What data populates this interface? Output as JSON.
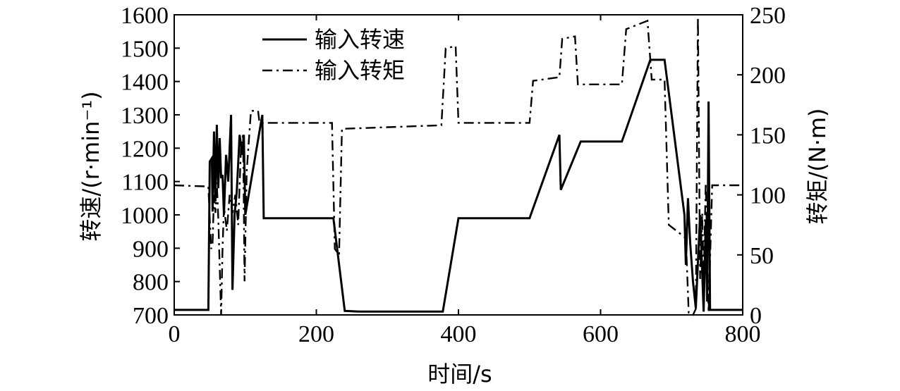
{
  "chart_data": {
    "type": "line",
    "xlabel": "时间/s",
    "ylabel_left": "转速/(r·min⁻¹)",
    "ylabel_right": "转矩/(N·m)",
    "xlim": [
      0,
      800
    ],
    "ylim_left": [
      700,
      1600
    ],
    "ylim_right": [
      0,
      250
    ],
    "x_ticks": [
      0,
      200,
      400,
      600,
      800
    ],
    "y_left_ticks": [
      700,
      800,
      900,
      1000,
      1100,
      1200,
      1300,
      1400,
      1500,
      1600
    ],
    "y_right_ticks": [
      0,
      50,
      100,
      150,
      200,
      250
    ],
    "grid": false,
    "legend_position": "top-center",
    "series": [
      {
        "name": "输入转速",
        "axis": "left",
        "style": "solid",
        "color": "#000000",
        "points": [
          [
            0,
            715
          ],
          [
            48,
            715
          ],
          [
            50,
            1160
          ],
          [
            53,
            1170
          ],
          [
            54,
            1010
          ],
          [
            56,
            1250
          ],
          [
            58,
            1040
          ],
          [
            60,
            1270
          ],
          [
            62,
            1080
          ],
          [
            64,
            1230
          ],
          [
            66,
            1110
          ],
          [
            68,
            1120
          ],
          [
            70,
            1000
          ],
          [
            73,
            1180
          ],
          [
            76,
            1100
          ],
          [
            80,
            1300
          ],
          [
            82,
            775
          ],
          [
            85,
            1000
          ],
          [
            88,
            1070
          ],
          [
            92,
            1240
          ],
          [
            96,
            1180
          ],
          [
            98,
            1240
          ],
          [
            100,
            1000
          ],
          [
            124,
            1300
          ],
          [
            126,
            990
          ],
          [
            224,
            990
          ],
          [
            240,
            712
          ],
          [
            262,
            710
          ],
          [
            378,
            710
          ],
          [
            400,
            990
          ],
          [
            500,
            990
          ],
          [
            542,
            1240
          ],
          [
            544,
            1075
          ],
          [
            572,
            1220
          ],
          [
            630,
            1220
          ],
          [
            670,
            1465
          ],
          [
            690,
            1465
          ],
          [
            718,
            1000
          ],
          [
            720,
            850
          ],
          [
            723,
            1050
          ],
          [
            726,
            920
          ],
          [
            730,
            800
          ],
          [
            734,
            720
          ],
          [
            740,
            1000
          ],
          [
            745,
            710
          ],
          [
            748,
            980
          ],
          [
            750,
            740
          ],
          [
            752,
            1340
          ],
          [
            754,
            715
          ],
          [
            800,
            715
          ]
        ]
      },
      {
        "name": "输入转矩",
        "axis": "right",
        "style": "dashdot",
        "color": "#000000",
        "points": [
          [
            0,
            108
          ],
          [
            48,
            107
          ],
          [
            50,
            80
          ],
          [
            52,
            55
          ],
          [
            54,
            60
          ],
          [
            56,
            100
          ],
          [
            58,
            85
          ],
          [
            60,
            110
          ],
          [
            62,
            80
          ],
          [
            64,
            40
          ],
          [
            66,
            0
          ],
          [
            68,
            55
          ],
          [
            70,
            90
          ],
          [
            74,
            70
          ],
          [
            78,
            100
          ],
          [
            82,
            85
          ],
          [
            86,
            100
          ],
          [
            90,
            75
          ],
          [
            94,
            140
          ],
          [
            97,
            150
          ],
          [
            99,
            28
          ],
          [
            102,
            120
          ],
          [
            108,
            170
          ],
          [
            118,
            170
          ],
          [
            120,
            160
          ],
          [
            222,
            160
          ],
          [
            226,
            55
          ],
          [
            232,
            50
          ],
          [
            236,
            155
          ],
          [
            376,
            158
          ],
          [
            382,
            222
          ],
          [
            396,
            224
          ],
          [
            400,
            160
          ],
          [
            500,
            160
          ],
          [
            505,
            195
          ],
          [
            542,
            198
          ],
          [
            546,
            230
          ],
          [
            564,
            232
          ],
          [
            568,
            192
          ],
          [
            630,
            192
          ],
          [
            636,
            238
          ],
          [
            666,
            245
          ],
          [
            672,
            196
          ],
          [
            690,
            196
          ],
          [
            696,
            75
          ],
          [
            720,
            64
          ],
          [
            724,
            2
          ],
          [
            730,
            0
          ],
          [
            734,
            5
          ],
          [
            737,
            248
          ],
          [
            740,
            30
          ],
          [
            743,
            85
          ],
          [
            745,
            30
          ],
          [
            748,
            110
          ],
          [
            752,
            2
          ],
          [
            757,
            108
          ],
          [
            800,
            108
          ]
        ]
      }
    ]
  }
}
